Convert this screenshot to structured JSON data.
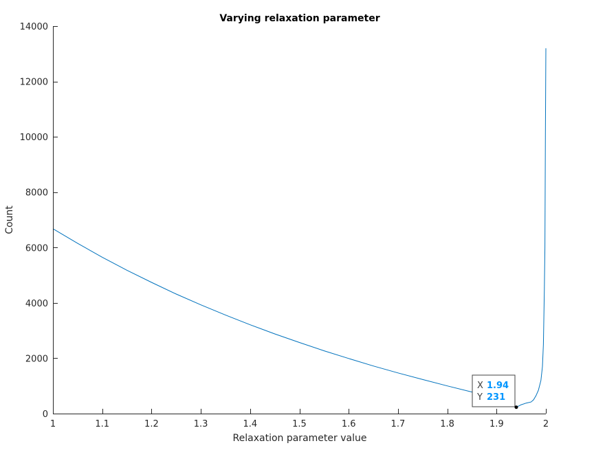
{
  "chart_data": {
    "type": "line",
    "title": "Varying relaxation parameter",
    "xlabel": "Relaxation parameter value",
    "ylabel": "Count",
    "xlim": [
      1,
      2
    ],
    "ylim": [
      0,
      14000
    ],
    "xticks": [
      1,
      1.1,
      1.2,
      1.3,
      1.4,
      1.5,
      1.6,
      1.7,
      1.8,
      1.9,
      2
    ],
    "xtick_labels": [
      "1",
      "1.1",
      "1.2",
      "1.3",
      "1.4",
      "1.5",
      "1.6",
      "1.7",
      "1.8",
      "1.9",
      "2"
    ],
    "yticks": [
      0,
      2000,
      4000,
      6000,
      8000,
      10000,
      12000,
      14000
    ],
    "ytick_labels": [
      "0",
      "2000",
      "4000",
      "6000",
      "8000",
      "10000",
      "12000",
      "14000"
    ],
    "grid": false,
    "series_color": "#0072BD",
    "series": [
      {
        "x": [
          1.0,
          1.05,
          1.1,
          1.15,
          1.2,
          1.25,
          1.3,
          1.35,
          1.4,
          1.45,
          1.5,
          1.55,
          1.6,
          1.65,
          1.7,
          1.75,
          1.8,
          1.85,
          1.9,
          1.92,
          1.94,
          1.95,
          1.96,
          1.97,
          1.975,
          1.98,
          1.985,
          1.99,
          1.993,
          1.995,
          1.997,
          1.998,
          1.999,
          2.0
        ],
        "y": [
          6680,
          6150,
          5650,
          5180,
          4740,
          4320,
          3930,
          3560,
          3210,
          2880,
          2570,
          2270,
          1990,
          1720,
          1470,
          1230,
          1000,
          780,
          560,
          420,
          231,
          320,
          380,
          420,
          500,
          650,
          850,
          1200,
          1700,
          2500,
          4500,
          6000,
          10000,
          13200
        ]
      }
    ],
    "datatip": {
      "x": 1.94,
      "y": 231,
      "x_key": "X",
      "y_key": "Y",
      "x_text": "1.94",
      "y_text": "231",
      "value_color": "#0095FF"
    }
  }
}
